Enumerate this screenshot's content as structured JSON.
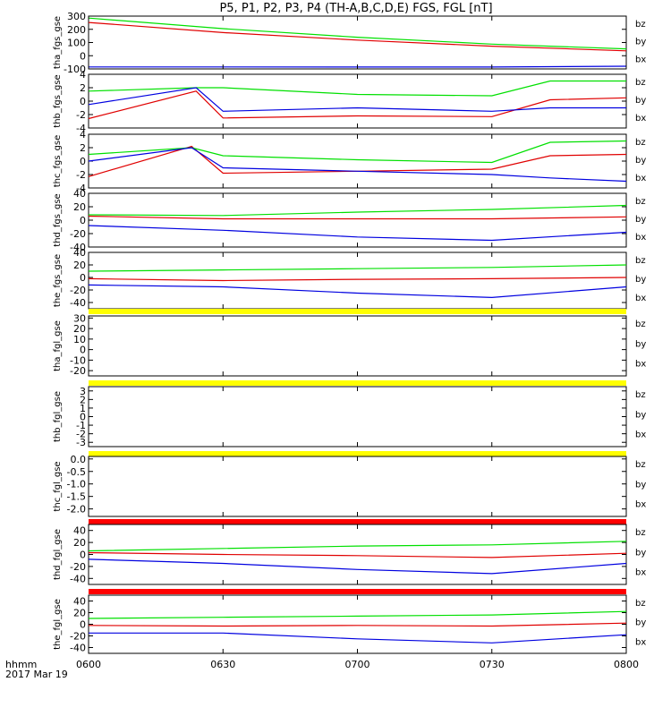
{
  "title": "P5, P1, P2, P3, P4 (TH-A,B,C,D,E) FGS, FGL [nT]",
  "x_axis": {
    "label_line1": "hhmm",
    "label_line2": "2017 Mar 19",
    "ticks": [
      "0600",
      "0630",
      "0700",
      "0730",
      "0800"
    ]
  },
  "component_labels": [
    "bz",
    "by",
    "bx"
  ],
  "colors": {
    "bz": "#e00000",
    "by": "#00e000",
    "bx": "#0000e0",
    "flag_yellow": "#ffff00",
    "flag_red": "#ff0000",
    "axis": "#000000"
  },
  "chart_data": [
    {
      "type": "line",
      "ylabel": "tha_fgs_gse",
      "ylim": [
        -100,
        300
      ],
      "yticks": [
        "300",
        "200",
        "100",
        "0",
        "-100"
      ],
      "x": [
        "06:00",
        "06:30",
        "07:00",
        "07:30",
        "08:00"
      ],
      "series": [
        {
          "name": "bz",
          "values": [
            252,
            175,
            118,
            72,
            37
          ]
        },
        {
          "name": "by",
          "values": [
            285,
            205,
            140,
            88,
            52
          ]
        },
        {
          "name": "bx",
          "values": [
            -85,
            -85,
            -86,
            -86,
            -80
          ]
        }
      ]
    },
    {
      "type": "line",
      "ylabel": "thb_fgs_gse",
      "ylim": [
        -4,
        4
      ],
      "yticks": [
        "4",
        "2",
        "0",
        "-2",
        "-4"
      ],
      "x": [
        "06:00",
        "06:24",
        "06:30",
        "07:00",
        "07:30",
        "07:43",
        "08:00"
      ],
      "series": [
        {
          "name": "bz",
          "values": [
            -2.6,
            1.5,
            -2.5,
            -2.2,
            -2.3,
            0.2,
            0.5
          ]
        },
        {
          "name": "by",
          "values": [
            1.5,
            2.0,
            2.0,
            1.0,
            0.8,
            3.0,
            3.0
          ]
        },
        {
          "name": "bx",
          "values": [
            -0.5,
            2.0,
            -1.5,
            -1.0,
            -1.5,
            -1.0,
            -1.0
          ]
        }
      ]
    },
    {
      "type": "line",
      "ylabel": "thc_fgs_gse",
      "ylim": [
        -4,
        4
      ],
      "yticks": [
        "4",
        "2",
        "0",
        "-2",
        "-4"
      ],
      "x": [
        "06:00",
        "06:23",
        "06:30",
        "07:00",
        "07:30",
        "07:43",
        "08:00"
      ],
      "series": [
        {
          "name": "bz",
          "values": [
            -2.3,
            2.2,
            -1.8,
            -1.5,
            -1.2,
            0.8,
            1.0
          ]
        },
        {
          "name": "by",
          "values": [
            1.0,
            2.0,
            0.8,
            0.2,
            -0.2,
            2.8,
            3.0
          ]
        },
        {
          "name": "bx",
          "values": [
            0.0,
            2.0,
            -1.0,
            -1.5,
            -2.0,
            -2.5,
            -3.0
          ]
        }
      ]
    },
    {
      "type": "line",
      "ylabel": "thd_fgs_gse",
      "ylim": [
        -40,
        40
      ],
      "yticks": [
        "40",
        "20",
        "0",
        "-20",
        "-40"
      ],
      "x": [
        "06:00",
        "06:30",
        "07:00",
        "07:30",
        "08:00"
      ],
      "series": [
        {
          "name": "bz",
          "values": [
            6,
            2,
            2,
            2,
            5
          ]
        },
        {
          "name": "by",
          "values": [
            8,
            7,
            12,
            16,
            22
          ]
        },
        {
          "name": "bx",
          "values": [
            -8,
            -15,
            -25,
            -30,
            -18
          ]
        }
      ]
    },
    {
      "type": "line",
      "ylabel": "the_fgs_gse",
      "ylim": [
        -50,
        40
      ],
      "yticks": [
        "40",
        "20",
        "0",
        "-20",
        "-40"
      ],
      "x": [
        "06:00",
        "06:30",
        "07:00",
        "07:30",
        "08:00"
      ],
      "series": [
        {
          "name": "bz",
          "values": [
            -2,
            -5,
            -3,
            -2,
            0
          ]
        },
        {
          "name": "by",
          "values": [
            10,
            12,
            14,
            16,
            20
          ]
        },
        {
          "name": "bx",
          "values": [
            -12,
            -15,
            -25,
            -32,
            -15
          ]
        }
      ]
    },
    {
      "type": "line",
      "ylabel": "tha_fgl_gse",
      "ylim": [
        -25,
        32
      ],
      "yticks": [
        "30",
        "20",
        "10",
        "0",
        "-10",
        "-20"
      ],
      "x": [
        "06:00",
        "08:00"
      ],
      "series": []
    },
    {
      "type": "line",
      "ylabel": "thb_fgl_gse",
      "ylim": [
        -3.5,
        3.5
      ],
      "yticks": [
        "3",
        "2",
        "1",
        "0",
        "-1",
        "-2",
        "-3"
      ],
      "x": [
        "06:00",
        "08:00"
      ],
      "series": []
    },
    {
      "type": "line",
      "ylabel": "thc_fgl_gse",
      "ylim": [
        -2.3,
        0.1
      ],
      "yticks": [
        "0.0",
        "-0.5",
        "-1.0",
        "-1.5",
        "-2.0"
      ],
      "x": [
        "06:00",
        "08:00"
      ],
      "series": []
    },
    {
      "type": "line",
      "ylabel": "thd_fgl_gse",
      "ylim": [
        -50,
        50
      ],
      "yticks": [
        "40",
        "20",
        "0",
        "-20",
        "-40"
      ],
      "x": [
        "06:00",
        "06:30",
        "07:00",
        "07:30",
        "08:00"
      ],
      "series": [
        {
          "name": "bz",
          "values": [
            3,
            0,
            -2,
            -5,
            2
          ]
        },
        {
          "name": "by",
          "values": [
            6,
            10,
            14,
            16,
            22
          ]
        },
        {
          "name": "bx",
          "values": [
            -8,
            -15,
            -25,
            -32,
            -15
          ]
        }
      ]
    },
    {
      "type": "line",
      "ylabel": "the_fgl_gse",
      "ylim": [
        -50,
        50
      ],
      "yticks": [
        "40",
        "20",
        "0",
        "-20",
        "-40"
      ],
      "x": [
        "06:00",
        "06:30",
        "07:00",
        "07:30",
        "08:00"
      ],
      "series": [
        {
          "name": "bz",
          "values": [
            -2,
            -3,
            -2,
            -3,
            2
          ]
        },
        {
          "name": "by",
          "values": [
            10,
            12,
            14,
            16,
            22
          ]
        },
        {
          "name": "bx",
          "values": [
            -15,
            -15,
            -25,
            -32,
            -18
          ]
        }
      ]
    }
  ]
}
